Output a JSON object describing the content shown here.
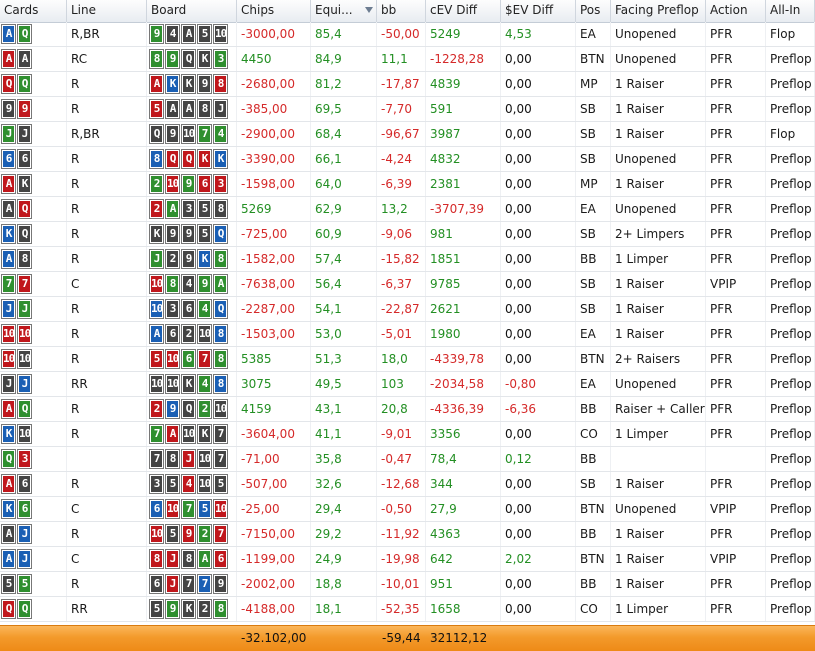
{
  "suit_colors": {
    "s": "#444444",
    "h": "#c0171c",
    "d": "#1a5fb4",
    "c": "#2f8f2f"
  },
  "columns": [
    {
      "key": "cards",
      "label": "Cards"
    },
    {
      "key": "line",
      "label": "Line"
    },
    {
      "key": "board",
      "label": "Board"
    },
    {
      "key": "chips",
      "label": "Chips"
    },
    {
      "key": "equity",
      "label": "Equi...",
      "sorted": "desc"
    },
    {
      "key": "bb",
      "label": "bb"
    },
    {
      "key": "cev",
      "label": "cEV Diff"
    },
    {
      "key": "sev",
      "label": "$EV Diff"
    },
    {
      "key": "pos",
      "label": "Pos"
    },
    {
      "key": "facing",
      "label": "Facing Preflop"
    },
    {
      "key": "action",
      "label": "Action"
    },
    {
      "key": "allin",
      "label": "All-In"
    }
  ],
  "rows": [
    {
      "cards": [
        [
          "A",
          "d"
        ],
        [
          "Q",
          "c"
        ]
      ],
      "line": "R,BR",
      "board": [
        [
          "9",
          "c"
        ],
        [
          "4",
          "s"
        ],
        [
          "A",
          "s"
        ],
        [
          "5",
          "s"
        ],
        [
          "10",
          "s"
        ]
      ],
      "chips": "-3000,00",
      "equity": "85,4",
      "bb": "-50,00",
      "cev": "5249",
      "sev": "4,53",
      "pos": "EA",
      "facing": "Unopened",
      "action": "PFR",
      "allin": "Flop"
    },
    {
      "cards": [
        [
          "A",
          "h"
        ],
        [
          "A",
          "s"
        ]
      ],
      "line": "RC",
      "board": [
        [
          "8",
          "c"
        ],
        [
          "9",
          "c"
        ],
        [
          "Q",
          "s"
        ],
        [
          "K",
          "s"
        ],
        [
          "3",
          "c"
        ]
      ],
      "chips": "4450",
      "equity": "84,9",
      "bb": "11,1",
      "cev": "-1228,28",
      "sev": "0,00",
      "pos": "BTN",
      "facing": "Unopened",
      "action": "PFR",
      "allin": "Preflop"
    },
    {
      "cards": [
        [
          "Q",
          "h"
        ],
        [
          "Q",
          "c"
        ]
      ],
      "line": "R",
      "board": [
        [
          "A",
          "h"
        ],
        [
          "K",
          "d"
        ],
        [
          "K",
          "s"
        ],
        [
          "9",
          "s"
        ],
        [
          "8",
          "h"
        ]
      ],
      "chips": "-2680,00",
      "equity": "81,2",
      "bb": "-17,87",
      "cev": "4839",
      "sev": "0,00",
      "pos": "MP",
      "facing": "1 Raiser",
      "action": "PFR",
      "allin": "Preflop"
    },
    {
      "cards": [
        [
          "9",
          "s"
        ],
        [
          "9",
          "h"
        ]
      ],
      "line": "R",
      "board": [
        [
          "5",
          "h"
        ],
        [
          "A",
          "s"
        ],
        [
          "A",
          "s"
        ],
        [
          "8",
          "s"
        ],
        [
          "J",
          "s"
        ]
      ],
      "chips": "-385,00",
      "equity": "69,5",
      "bb": "-7,70",
      "cev": "591",
      "sev": "0,00",
      "pos": "SB",
      "facing": "1 Raiser",
      "action": "PFR",
      "allin": "Preflop"
    },
    {
      "cards": [
        [
          "J",
          "c"
        ],
        [
          "J",
          "s"
        ]
      ],
      "line": "R,BR",
      "board": [
        [
          "Q",
          "s"
        ],
        [
          "9",
          "s"
        ],
        [
          "10",
          "s"
        ],
        [
          "7",
          "c"
        ],
        [
          "4",
          "c"
        ]
      ],
      "chips": "-2900,00",
      "equity": "68,4",
      "bb": "-96,67",
      "cev": "3987",
      "sev": "0,00",
      "pos": "SB",
      "facing": "1 Raiser",
      "action": "PFR",
      "allin": "Flop"
    },
    {
      "cards": [
        [
          "6",
          "d"
        ],
        [
          "6",
          "s"
        ]
      ],
      "line": "R",
      "board": [
        [
          "8",
          "d"
        ],
        [
          "Q",
          "h"
        ],
        [
          "Q",
          "h"
        ],
        [
          "K",
          "h"
        ],
        [
          "K",
          "d"
        ]
      ],
      "chips": "-3390,00",
      "equity": "66,1",
      "bb": "-4,24",
      "cev": "4832",
      "sev": "0,00",
      "pos": "SB",
      "facing": "Unopened",
      "action": "PFR",
      "allin": "Preflop"
    },
    {
      "cards": [
        [
          "A",
          "h"
        ],
        [
          "K",
          "s"
        ]
      ],
      "line": "R",
      "board": [
        [
          "2",
          "c"
        ],
        [
          "10",
          "h"
        ],
        [
          "9",
          "c"
        ],
        [
          "6",
          "h"
        ],
        [
          "3",
          "h"
        ]
      ],
      "chips": "-1598,00",
      "equity": "64,0",
      "bb": "-6,39",
      "cev": "2381",
      "sev": "0,00",
      "pos": "MP",
      "facing": "1 Raiser",
      "action": "PFR",
      "allin": "Preflop"
    },
    {
      "cards": [
        [
          "A",
          "s"
        ],
        [
          "Q",
          "h"
        ]
      ],
      "line": "R",
      "board": [
        [
          "2",
          "h"
        ],
        [
          "A",
          "c"
        ],
        [
          "3",
          "s"
        ],
        [
          "5",
          "s"
        ],
        [
          "8",
          "s"
        ]
      ],
      "chips": "5269",
      "equity": "62,9",
      "bb": "13,2",
      "cev": "-3707,39",
      "sev": "0,00",
      "pos": "EA",
      "facing": "Unopened",
      "action": "PFR",
      "allin": "Preflop"
    },
    {
      "cards": [
        [
          "K",
          "d"
        ],
        [
          "Q",
          "s"
        ]
      ],
      "line": "R",
      "board": [
        [
          "K",
          "s"
        ],
        [
          "9",
          "s"
        ],
        [
          "9",
          "s"
        ],
        [
          "5",
          "s"
        ],
        [
          "Q",
          "d"
        ]
      ],
      "chips": "-725,00",
      "equity": "60,9",
      "bb": "-9,06",
      "cev": "981",
      "sev": "0,00",
      "pos": "SB",
      "facing": "2+ Limpers",
      "action": "PFR",
      "allin": "Preflop"
    },
    {
      "cards": [
        [
          "A",
          "d"
        ],
        [
          "8",
          "s"
        ]
      ],
      "line": "R",
      "board": [
        [
          "J",
          "c"
        ],
        [
          "2",
          "s"
        ],
        [
          "9",
          "s"
        ],
        [
          "K",
          "d"
        ],
        [
          "8",
          "c"
        ]
      ],
      "chips": "-1582,00",
      "equity": "57,4",
      "bb": "-15,82",
      "cev": "1851",
      "sev": "0,00",
      "pos": "BB",
      "facing": "1 Limper",
      "action": "PFR",
      "allin": "Preflop"
    },
    {
      "cards": [
        [
          "7",
          "c"
        ],
        [
          "7",
          "h"
        ]
      ],
      "line": "C",
      "board": [
        [
          "10",
          "h"
        ],
        [
          "8",
          "c"
        ],
        [
          "4",
          "s"
        ],
        [
          "9",
          "c"
        ],
        [
          "A",
          "c"
        ]
      ],
      "chips": "-7638,00",
      "equity": "56,4",
      "bb": "-6,37",
      "cev": "9785",
      "sev": "0,00",
      "pos": "SB",
      "facing": "1 Raiser",
      "action": "VPIP",
      "allin": "Preflop"
    },
    {
      "cards": [
        [
          "J",
          "d"
        ],
        [
          "J",
          "c"
        ]
      ],
      "line": "R",
      "board": [
        [
          "10",
          "d"
        ],
        [
          "3",
          "s"
        ],
        [
          "6",
          "s"
        ],
        [
          "4",
          "c"
        ],
        [
          "Q",
          "d"
        ]
      ],
      "chips": "-2287,00",
      "equity": "54,1",
      "bb": "-22,87",
      "cev": "2621",
      "sev": "0,00",
      "pos": "SB",
      "facing": "1 Raiser",
      "action": "PFR",
      "allin": "Preflop"
    },
    {
      "cards": [
        [
          "10",
          "h"
        ],
        [
          "10",
          "h"
        ]
      ],
      "line": "R",
      "board": [
        [
          "A",
          "d"
        ],
        [
          "6",
          "s"
        ],
        [
          "2",
          "s"
        ],
        [
          "10",
          "s"
        ],
        [
          "8",
          "d"
        ]
      ],
      "chips": "-1503,00",
      "equity": "53,0",
      "bb": "-5,01",
      "cev": "1980",
      "sev": "0,00",
      "pos": "EA",
      "facing": "1 Raiser",
      "action": "PFR",
      "allin": "Preflop"
    },
    {
      "cards": [
        [
          "10",
          "h"
        ],
        [
          "10",
          "s"
        ]
      ],
      "line": "R",
      "board": [
        [
          "5",
          "h"
        ],
        [
          "10",
          "h"
        ],
        [
          "6",
          "c"
        ],
        [
          "7",
          "h"
        ],
        [
          "8",
          "c"
        ]
      ],
      "chips": "5385",
      "equity": "51,3",
      "bb": "18,0",
      "cev": "-4339,78",
      "sev": "0,00",
      "pos": "BTN",
      "facing": "2+ Raisers",
      "action": "PFR",
      "allin": "Preflop"
    },
    {
      "cards": [
        [
          "J",
          "s"
        ],
        [
          "J",
          "d"
        ]
      ],
      "line": "RR",
      "board": [
        [
          "10",
          "s"
        ],
        [
          "10",
          "s"
        ],
        [
          "K",
          "s"
        ],
        [
          "4",
          "c"
        ],
        [
          "8",
          "d"
        ]
      ],
      "chips": "3075",
      "equity": "49,5",
      "bb": "103",
      "cev": "-2034,58",
      "sev": "-0,80",
      "pos": "EA",
      "facing": "Unopened",
      "action": "PFR",
      "allin": "Preflop"
    },
    {
      "cards": [
        [
          "A",
          "h"
        ],
        [
          "Q",
          "c"
        ]
      ],
      "line": "R",
      "board": [
        [
          "2",
          "h"
        ],
        [
          "9",
          "d"
        ],
        [
          "Q",
          "s"
        ],
        [
          "2",
          "c"
        ],
        [
          "10",
          "s"
        ]
      ],
      "chips": "4159",
      "equity": "43,1",
      "bb": "20,8",
      "cev": "-4336,39",
      "sev": "-6,36",
      "pos": "BB",
      "facing": "Raiser + Callers",
      "action": "PFR",
      "allin": "Preflop"
    },
    {
      "cards": [
        [
          "K",
          "d"
        ],
        [
          "10",
          "s"
        ]
      ],
      "line": "R",
      "board": [
        [
          "7",
          "c"
        ],
        [
          "A",
          "h"
        ],
        [
          "10",
          "s"
        ],
        [
          "K",
          "s"
        ],
        [
          "7",
          "s"
        ]
      ],
      "chips": "-3604,00",
      "equity": "41,1",
      "bb": "-9,01",
      "cev": "3356",
      "sev": "0,00",
      "pos": "CO",
      "facing": "1 Limper",
      "action": "PFR",
      "allin": "Preflop"
    },
    {
      "cards": [
        [
          "Q",
          "c"
        ],
        [
          "3",
          "h"
        ]
      ],
      "line": "",
      "board": [
        [
          "7",
          "s"
        ],
        [
          "8",
          "s"
        ],
        [
          "J",
          "h"
        ],
        [
          "10",
          "s"
        ],
        [
          "7",
          "s"
        ]
      ],
      "chips": "-71,00",
      "equity": "35,8",
      "bb": "-0,47",
      "cev": "78,4",
      "sev": "0,12",
      "pos": "BB",
      "facing": "",
      "action": "",
      "allin": "Preflop"
    },
    {
      "cards": [
        [
          "A",
          "h"
        ],
        [
          "6",
          "s"
        ]
      ],
      "line": "R",
      "board": [
        [
          "3",
          "s"
        ],
        [
          "5",
          "s"
        ],
        [
          "4",
          "h"
        ],
        [
          "10",
          "s"
        ],
        [
          "5",
          "s"
        ]
      ],
      "chips": "-507,00",
      "equity": "32,6",
      "bb": "-12,68",
      "cev": "344",
      "sev": "0,00",
      "pos": "SB",
      "facing": "1 Raiser",
      "action": "PFR",
      "allin": "Preflop"
    },
    {
      "cards": [
        [
          "K",
          "d"
        ],
        [
          "6",
          "c"
        ]
      ],
      "line": "C",
      "board": [
        [
          "6",
          "d"
        ],
        [
          "10",
          "h"
        ],
        [
          "7",
          "c"
        ],
        [
          "5",
          "d"
        ],
        [
          "10",
          "h"
        ]
      ],
      "chips": "-25,00",
      "equity": "29,4",
      "bb": "-0,50",
      "cev": "27,9",
      "sev": "0,00",
      "pos": "BTN",
      "facing": "Unopened",
      "action": "VPIP",
      "allin": "Preflop"
    },
    {
      "cards": [
        [
          "A",
          "s"
        ],
        [
          "J",
          "d"
        ]
      ],
      "line": "R",
      "board": [
        [
          "10",
          "h"
        ],
        [
          "5",
          "s"
        ],
        [
          "9",
          "h"
        ],
        [
          "2",
          "c"
        ],
        [
          "7",
          "h"
        ]
      ],
      "chips": "-7150,00",
      "equity": "29,2",
      "bb": "-11,92",
      "cev": "4363",
      "sev": "0,00",
      "pos": "BB",
      "facing": "1 Raiser",
      "action": "PFR",
      "allin": "Preflop"
    },
    {
      "cards": [
        [
          "A",
          "d"
        ],
        [
          "J",
          "d"
        ]
      ],
      "line": "C",
      "board": [
        [
          "8",
          "h"
        ],
        [
          "J",
          "h"
        ],
        [
          "8",
          "s"
        ],
        [
          "A",
          "c"
        ],
        [
          "6",
          "h"
        ]
      ],
      "chips": "-1199,00",
      "equity": "24,9",
      "bb": "-19,98",
      "cev": "642",
      "sev": "2,02",
      "pos": "BTN",
      "facing": "1 Raiser",
      "action": "VPIP",
      "allin": "Preflop"
    },
    {
      "cards": [
        [
          "5",
          "s"
        ],
        [
          "5",
          "c"
        ]
      ],
      "line": "R",
      "board": [
        [
          "6",
          "s"
        ],
        [
          "J",
          "h"
        ],
        [
          "7",
          "s"
        ],
        [
          "7",
          "d"
        ],
        [
          "9",
          "s"
        ]
      ],
      "chips": "-2002,00",
      "equity": "18,8",
      "bb": "-10,01",
      "cev": "951",
      "sev": "0,00",
      "pos": "BB",
      "facing": "1 Raiser",
      "action": "PFR",
      "allin": "Preflop"
    },
    {
      "cards": [
        [
          "Q",
          "h"
        ],
        [
          "Q",
          "c"
        ]
      ],
      "line": "RR",
      "board": [
        [
          "5",
          "s"
        ],
        [
          "9",
          "c"
        ],
        [
          "K",
          "s"
        ],
        [
          "2",
          "s"
        ],
        [
          "8",
          "c"
        ]
      ],
      "chips": "-4188,00",
      "equity": "18,1",
      "bb": "-52,35",
      "cev": "1658",
      "sev": "0,00",
      "pos": "CO",
      "facing": "1 Limper",
      "action": "PFR",
      "allin": "Preflop"
    }
  ],
  "totals": {
    "chips": "-32.102,00",
    "bb": "-59,44",
    "cev": "32112,12"
  }
}
